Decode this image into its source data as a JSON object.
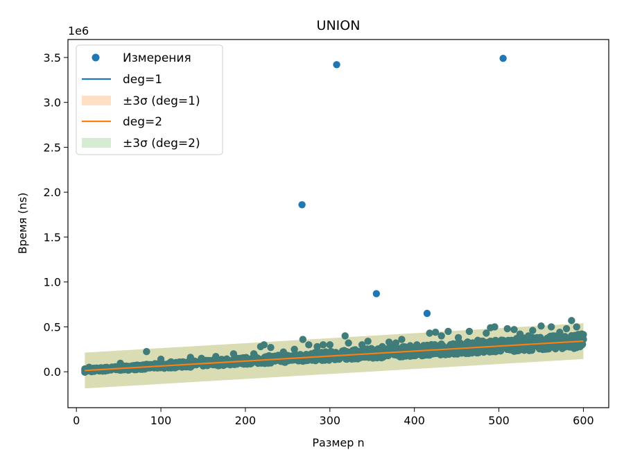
{
  "chart_data": {
    "type": "scatter",
    "title": "UNION",
    "xlabel": "Размер n",
    "ylabel": "Время (ns)",
    "y_scale_label": "1e6",
    "xlim": [
      -10,
      630
    ],
    "ylim": [
      -400000,
      3700000
    ],
    "x_ticks": [
      0,
      100,
      200,
      300,
      400,
      500,
      600
    ],
    "x_tick_labels": [
      "0",
      "100",
      "200",
      "300",
      "400",
      "500",
      "600"
    ],
    "y_ticks": [
      0,
      500000,
      1000000,
      1500000,
      2000000,
      2500000,
      3000000,
      3500000
    ],
    "y_tick_labels": [
      "0.0",
      "0.5",
      "1.0",
      "1.5",
      "2.0",
      "2.5",
      "3.0",
      "3.5"
    ],
    "grid": false,
    "legend_position": "top-left",
    "colors": {
      "measurements": "#1f77b4",
      "fit_deg1": "#1f77b4",
      "band_deg1": "#ffe0c4",
      "fit_deg2": "#ff7f0e",
      "band_deg2": "#d3dab0",
      "points_in_band": "#3f7c7a"
    },
    "series": [
      {
        "name": "Измерения",
        "kind": "scatter",
        "approximate_trend": {
          "x_range": [
            10,
            600
          ],
          "y_at_start": 15000,
          "y_at_end": 345000
        },
        "points": [
          [
            10,
            15000
          ],
          [
            15,
            50000
          ],
          [
            24,
            40000
          ],
          [
            40,
            30000
          ],
          [
            52,
            95000
          ],
          [
            62,
            60000
          ],
          [
            75,
            70000
          ],
          [
            83,
            225000
          ],
          [
            93,
            75000
          ],
          [
            100,
            140000
          ],
          [
            112,
            110000
          ],
          [
            122,
            95000
          ],
          [
            135,
            160000
          ],
          [
            148,
            150000
          ],
          [
            155,
            110000
          ],
          [
            165,
            170000
          ],
          [
            178,
            140000
          ],
          [
            186,
            200000
          ],
          [
            200,
            150000
          ],
          [
            210,
            200000
          ],
          [
            218,
            280000
          ],
          [
            222,
            300000
          ],
          [
            230,
            270000
          ],
          [
            245,
            220000
          ],
          [
            258,
            250000
          ],
          [
            267,
            1860000
          ],
          [
            268,
            360000
          ],
          [
            275,
            300000
          ],
          [
            285,
            280000
          ],
          [
            292,
            300000
          ],
          [
            300,
            300000
          ],
          [
            308,
            3420000
          ],
          [
            318,
            400000
          ],
          [
            322,
            320000
          ],
          [
            338,
            300000
          ],
          [
            345,
            340000
          ],
          [
            355,
            870000
          ],
          [
            362,
            280000
          ],
          [
            370,
            330000
          ],
          [
            378,
            320000
          ],
          [
            385,
            360000
          ],
          [
            395,
            290000
          ],
          [
            403,
            300000
          ],
          [
            415,
            650000
          ],
          [
            418,
            430000
          ],
          [
            425,
            440000
          ],
          [
            432,
            400000
          ],
          [
            440,
            450000
          ],
          [
            452,
            380000
          ],
          [
            465,
            450000
          ],
          [
            475,
            350000
          ],
          [
            485,
            430000
          ],
          [
            490,
            490000
          ],
          [
            495,
            500000
          ],
          [
            505,
            3490000
          ],
          [
            510,
            480000
          ],
          [
            518,
            470000
          ],
          [
            525,
            420000
          ],
          [
            535,
            400000
          ],
          [
            540,
            460000
          ],
          [
            550,
            510000
          ],
          [
            562,
            500000
          ],
          [
            572,
            440000
          ],
          [
            580,
            480000
          ],
          [
            586,
            570000
          ],
          [
            592,
            500000
          ],
          [
            600,
            360000
          ]
        ]
      },
      {
        "name": "deg=1",
        "kind": "line",
        "x": [
          10,
          600
        ],
        "y": [
          14000,
          341000
        ]
      },
      {
        "name": "±3σ (deg=1)",
        "kind": "band",
        "x": [
          10,
          600
        ],
        "lower": [
          -185000,
          142000
        ],
        "upper": [
          213000,
          540000
        ]
      },
      {
        "name": "deg=2",
        "kind": "line",
        "x": [
          10,
          600
        ],
        "y": [
          14000,
          341000
        ]
      },
      {
        "name": "±3σ (deg=2)",
        "kind": "band",
        "x": [
          10,
          600
        ],
        "lower": [
          -185000,
          142000
        ],
        "upper": [
          213000,
          540000
        ]
      }
    ]
  }
}
